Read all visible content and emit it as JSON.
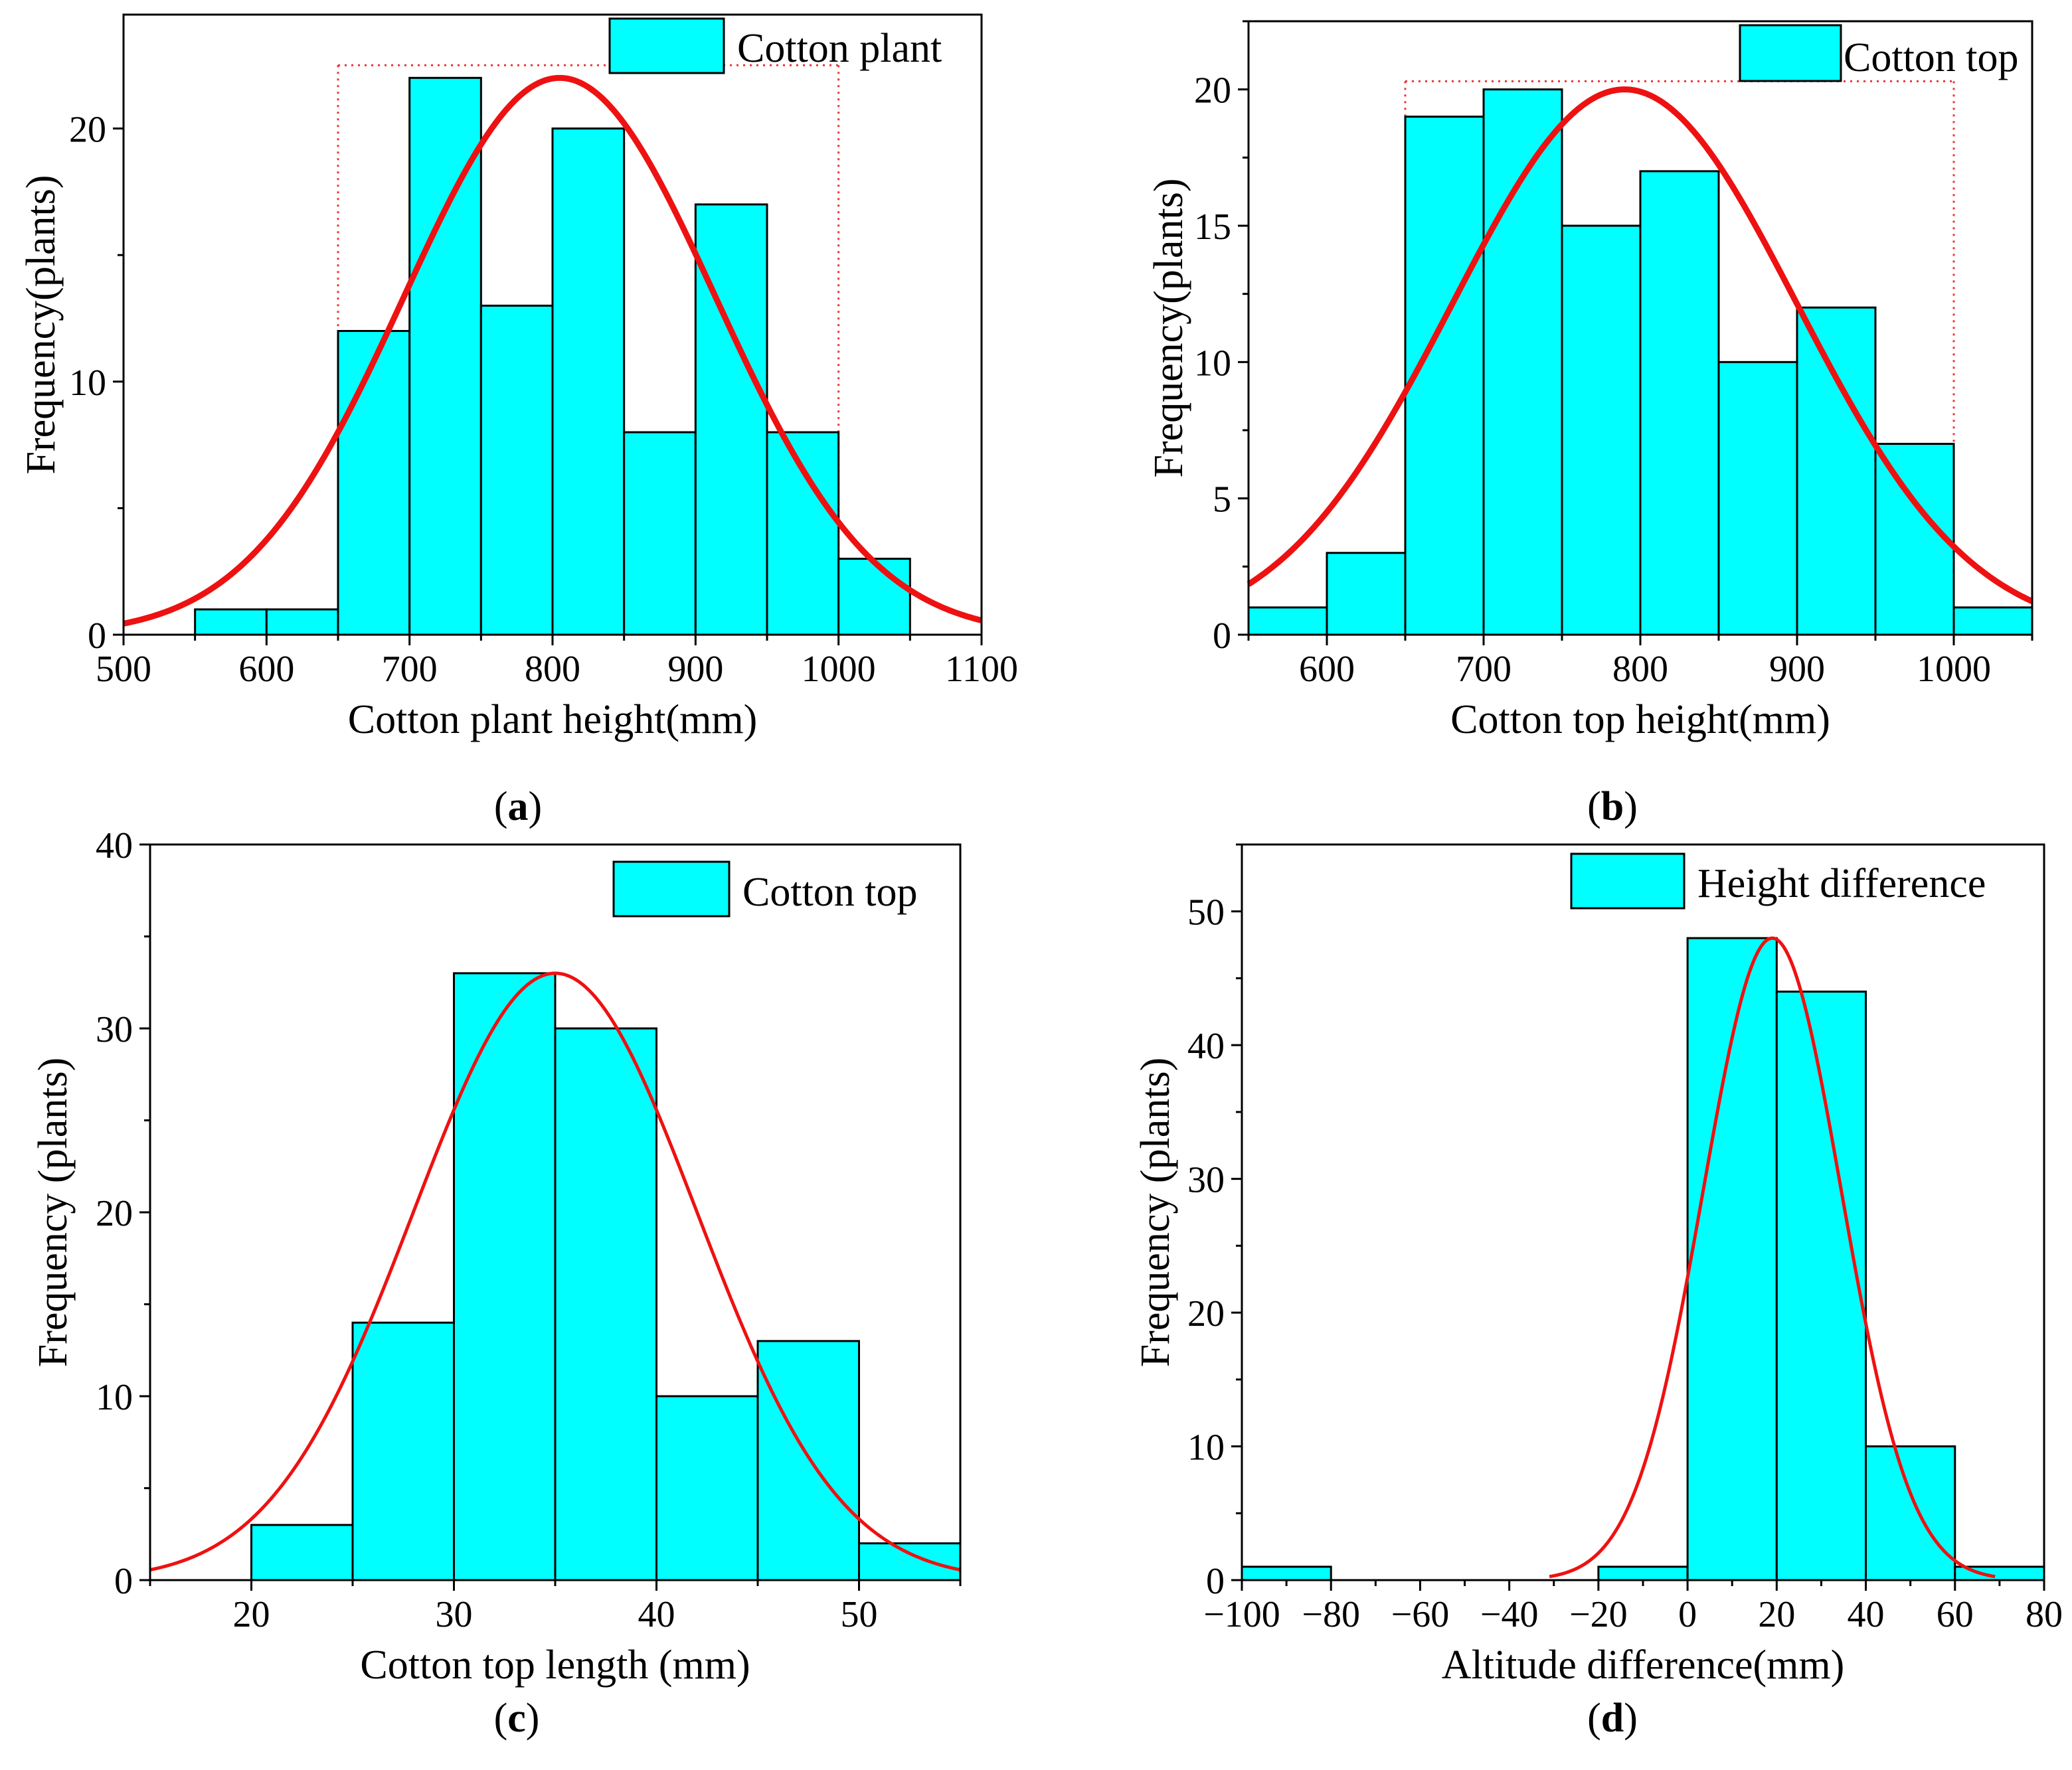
{
  "figure": {
    "panel_labels": [
      {
        "open": "(",
        "letter": "a",
        "close": ")"
      },
      {
        "open": "(",
        "letter": "b",
        "close": ")"
      },
      {
        "open": "(",
        "letter": "c",
        "close": ")"
      },
      {
        "open": "(",
        "letter": "d",
        "close": ")"
      }
    ]
  },
  "colors": {
    "bar_fill": "#00ffff",
    "bar_stroke": "#000000",
    "curve": "#ee1111",
    "range_marker": "#ee3333"
  },
  "chart_data": [
    {
      "type": "bar",
      "subtype": "histogram_with_normal_fit",
      "panel": "a",
      "xlabel": "Cotton plant height(mm)",
      "ylabel": "Frequency(plants)",
      "legend": "Cotton plant",
      "legend_position": "top-right",
      "xlim": [
        500,
        1100
      ],
      "ylim": [
        0,
        24.5
      ],
      "x_ticks": [
        500,
        600,
        700,
        800,
        900,
        1000,
        1100
      ],
      "x_tick_labels": [
        "500",
        "600",
        "700",
        "800",
        "900",
        "1000",
        "1100"
      ],
      "x_minor_step": 50,
      "y_ticks": [
        0,
        10,
        20
      ],
      "y_tick_labels": [
        "0",
        "10",
        "20"
      ],
      "y_minor_step": 5,
      "bins": [
        {
          "from": 550,
          "to": 600,
          "value": 1
        },
        {
          "from": 600,
          "to": 650,
          "value": 1
        },
        {
          "from": 650,
          "to": 700,
          "value": 12
        },
        {
          "from": 700,
          "to": 750,
          "value": 22
        },
        {
          "from": 750,
          "to": 800,
          "value": 13
        },
        {
          "from": 800,
          "to": 850,
          "value": 20
        },
        {
          "from": 850,
          "to": 900,
          "value": 8
        },
        {
          "from": 900,
          "to": 950,
          "value": 17
        },
        {
          "from": 950,
          "to": 1000,
          "value": 8
        },
        {
          "from": 1000,
          "to": 1050,
          "value": 3
        }
      ],
      "normal_fit": {
        "mean": 805,
        "sd": 109,
        "peak": 22,
        "x_from": 500,
        "x_to": 1100,
        "thick": true
      },
      "range_markers": {
        "x_from": 650,
        "x_to": 1000,
        "y_top": 22.5
      }
    },
    {
      "type": "bar",
      "subtype": "histogram_with_normal_fit",
      "panel": "b",
      "xlabel": "Cotton top height(mm)",
      "ylabel": "Frequency(plants)",
      "legend": "Cotton top",
      "legend_position": "top-right",
      "xlim": [
        550,
        1050
      ],
      "ylim": [
        0,
        22.5
      ],
      "x_ticks": [
        600,
        700,
        800,
        900,
        1000
      ],
      "x_tick_labels": [
        "600",
        "700",
        "800",
        "900",
        "1000"
      ],
      "x_minor_step": 50,
      "y_ticks": [
        0,
        5,
        10,
        15,
        20
      ],
      "y_tick_labels": [
        "0",
        "5",
        "10",
        "15",
        "20"
      ],
      "y_minor_step": 2.5,
      "bins": [
        {
          "from": 550,
          "to": 600,
          "value": 1
        },
        {
          "from": 600,
          "to": 650,
          "value": 3
        },
        {
          "from": 650,
          "to": 700,
          "value": 19
        },
        {
          "from": 700,
          "to": 750,
          "value": 20
        },
        {
          "from": 750,
          "to": 800,
          "value": 15
        },
        {
          "from": 800,
          "to": 850,
          "value": 17
        },
        {
          "from": 850,
          "to": 900,
          "value": 10
        },
        {
          "from": 900,
          "to": 950,
          "value": 12
        },
        {
          "from": 950,
          "to": 1000,
          "value": 7
        },
        {
          "from": 1000,
          "to": 1050,
          "value": 1
        }
      ],
      "normal_fit": {
        "mean": 790,
        "sd": 110,
        "peak": 20,
        "x_from": 550,
        "x_to": 1050,
        "thick": true
      },
      "range_markers": {
        "x_from": 650,
        "x_to": 1000,
        "y_top": 20.3
      }
    },
    {
      "type": "bar",
      "subtype": "histogram_with_normal_fit",
      "panel": "c",
      "xlabel": "Cotton top length (mm)",
      "ylabel": "Frequency (plants)",
      "legend": "Cotton top",
      "legend_position": "top-right",
      "xlim": [
        15,
        55
      ],
      "ylim": [
        0,
        40
      ],
      "x_ticks": [
        20,
        30,
        40,
        50
      ],
      "x_tick_labels": [
        "20",
        "30",
        "40",
        "50"
      ],
      "x_minor_step": 5,
      "y_ticks": [
        0,
        10,
        20,
        30,
        40
      ],
      "y_tick_labels": [
        "0",
        "10",
        "20",
        "30",
        "40"
      ],
      "y_minor_step": 5,
      "bins": [
        {
          "from": 20,
          "to": 25,
          "value": 3
        },
        {
          "from": 25,
          "to": 30,
          "value": 14
        },
        {
          "from": 30,
          "to": 35,
          "value": 33
        },
        {
          "from": 35,
          "to": 40,
          "value": 30
        },
        {
          "from": 40,
          "to": 45,
          "value": 10
        },
        {
          "from": 45,
          "to": 50,
          "value": 13
        },
        {
          "from": 50,
          "to": 55,
          "value": 2
        }
      ],
      "normal_fit": {
        "mean": 35,
        "sd": 7,
        "peak": 33,
        "x_from": 15,
        "x_to": 55,
        "thick": false
      },
      "range_markers": null
    },
    {
      "type": "bar",
      "subtype": "histogram_with_normal_fit",
      "panel": "d",
      "xlabel": "Altitude difference(mm)",
      "ylabel": "Frequency (plants)",
      "legend": "Height difference",
      "legend_position": "top-right",
      "xlim": [
        -100,
        80
      ],
      "ylim": [
        0,
        55
      ],
      "x_ticks": [
        -100,
        -80,
        -60,
        -40,
        -20,
        0,
        20,
        40,
        60,
        80
      ],
      "x_tick_labels": [
        "−100",
        "−80",
        "−60",
        "−40",
        "−20",
        "0",
        "20",
        "40",
        "60",
        "80"
      ],
      "x_minor_step": 10,
      "y_ticks": [
        0,
        10,
        20,
        30,
        40,
        50
      ],
      "y_tick_labels": [
        "0",
        "10",
        "20",
        "30",
        "40",
        "50"
      ],
      "y_minor_step": 5,
      "bins": [
        {
          "from": -100,
          "to": -80,
          "value": 1
        },
        {
          "from": -20,
          "to": 0,
          "value": 1
        },
        {
          "from": 0,
          "to": 20,
          "value": 48
        },
        {
          "from": 20,
          "to": 40,
          "value": 44
        },
        {
          "from": 40,
          "to": 60,
          "value": 10
        },
        {
          "from": 60,
          "to": 80,
          "value": 1
        }
      ],
      "normal_fit": {
        "mean": 19,
        "sd": 15.5,
        "peak": 48,
        "x_from": -31,
        "x_to": 69,
        "thick": false
      },
      "range_markers": null
    }
  ]
}
